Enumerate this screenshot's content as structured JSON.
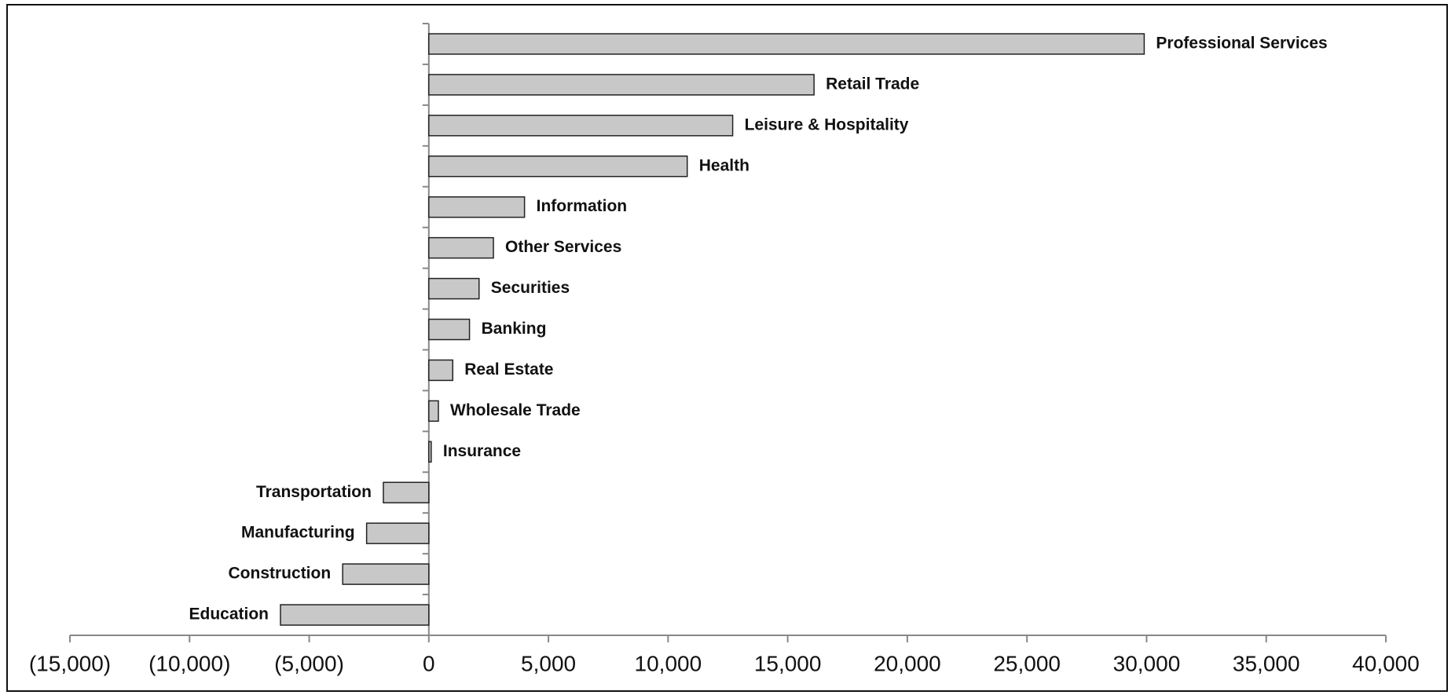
{
  "chart_data": {
    "type": "bar",
    "orientation": "horizontal",
    "categories": [
      "Professional Services",
      "Retail Trade",
      "Leisure & Hospitality",
      "Health",
      "Information",
      "Other Services",
      "Securities",
      "Banking",
      "Real Estate",
      "Wholesale Trade",
      "Insurance",
      "Transportation",
      "Manufacturing",
      "Construction",
      "Education"
    ],
    "values": [
      29900,
      16100,
      12700,
      10800,
      4000,
      2700,
      2100,
      1700,
      1000,
      400,
      100,
      -1900,
      -2600,
      -3600,
      -6200
    ],
    "color": "#c8c8c8",
    "xlim": [
      -15000,
      40000
    ],
    "xticks": [
      {
        "value": -15000,
        "label": "(15,000)"
      },
      {
        "value": -10000,
        "label": "(10,000)"
      },
      {
        "value": -5000,
        "label": "(5,000)"
      },
      0,
      {
        "value": 5000,
        "label": "5,000"
      },
      {
        "value": 10000,
        "label": "10,000"
      },
      {
        "value": 15000,
        "label": "15,000"
      },
      {
        "value": 20000,
        "label": "20,000"
      },
      {
        "value": 25000,
        "label": "25,000"
      },
      {
        "value": 30000,
        "label": "30,000"
      },
      {
        "value": 35000,
        "label": "35,000"
      },
      {
        "value": 40000,
        "label": "40,000"
      }
    ],
    "grid": false
  }
}
